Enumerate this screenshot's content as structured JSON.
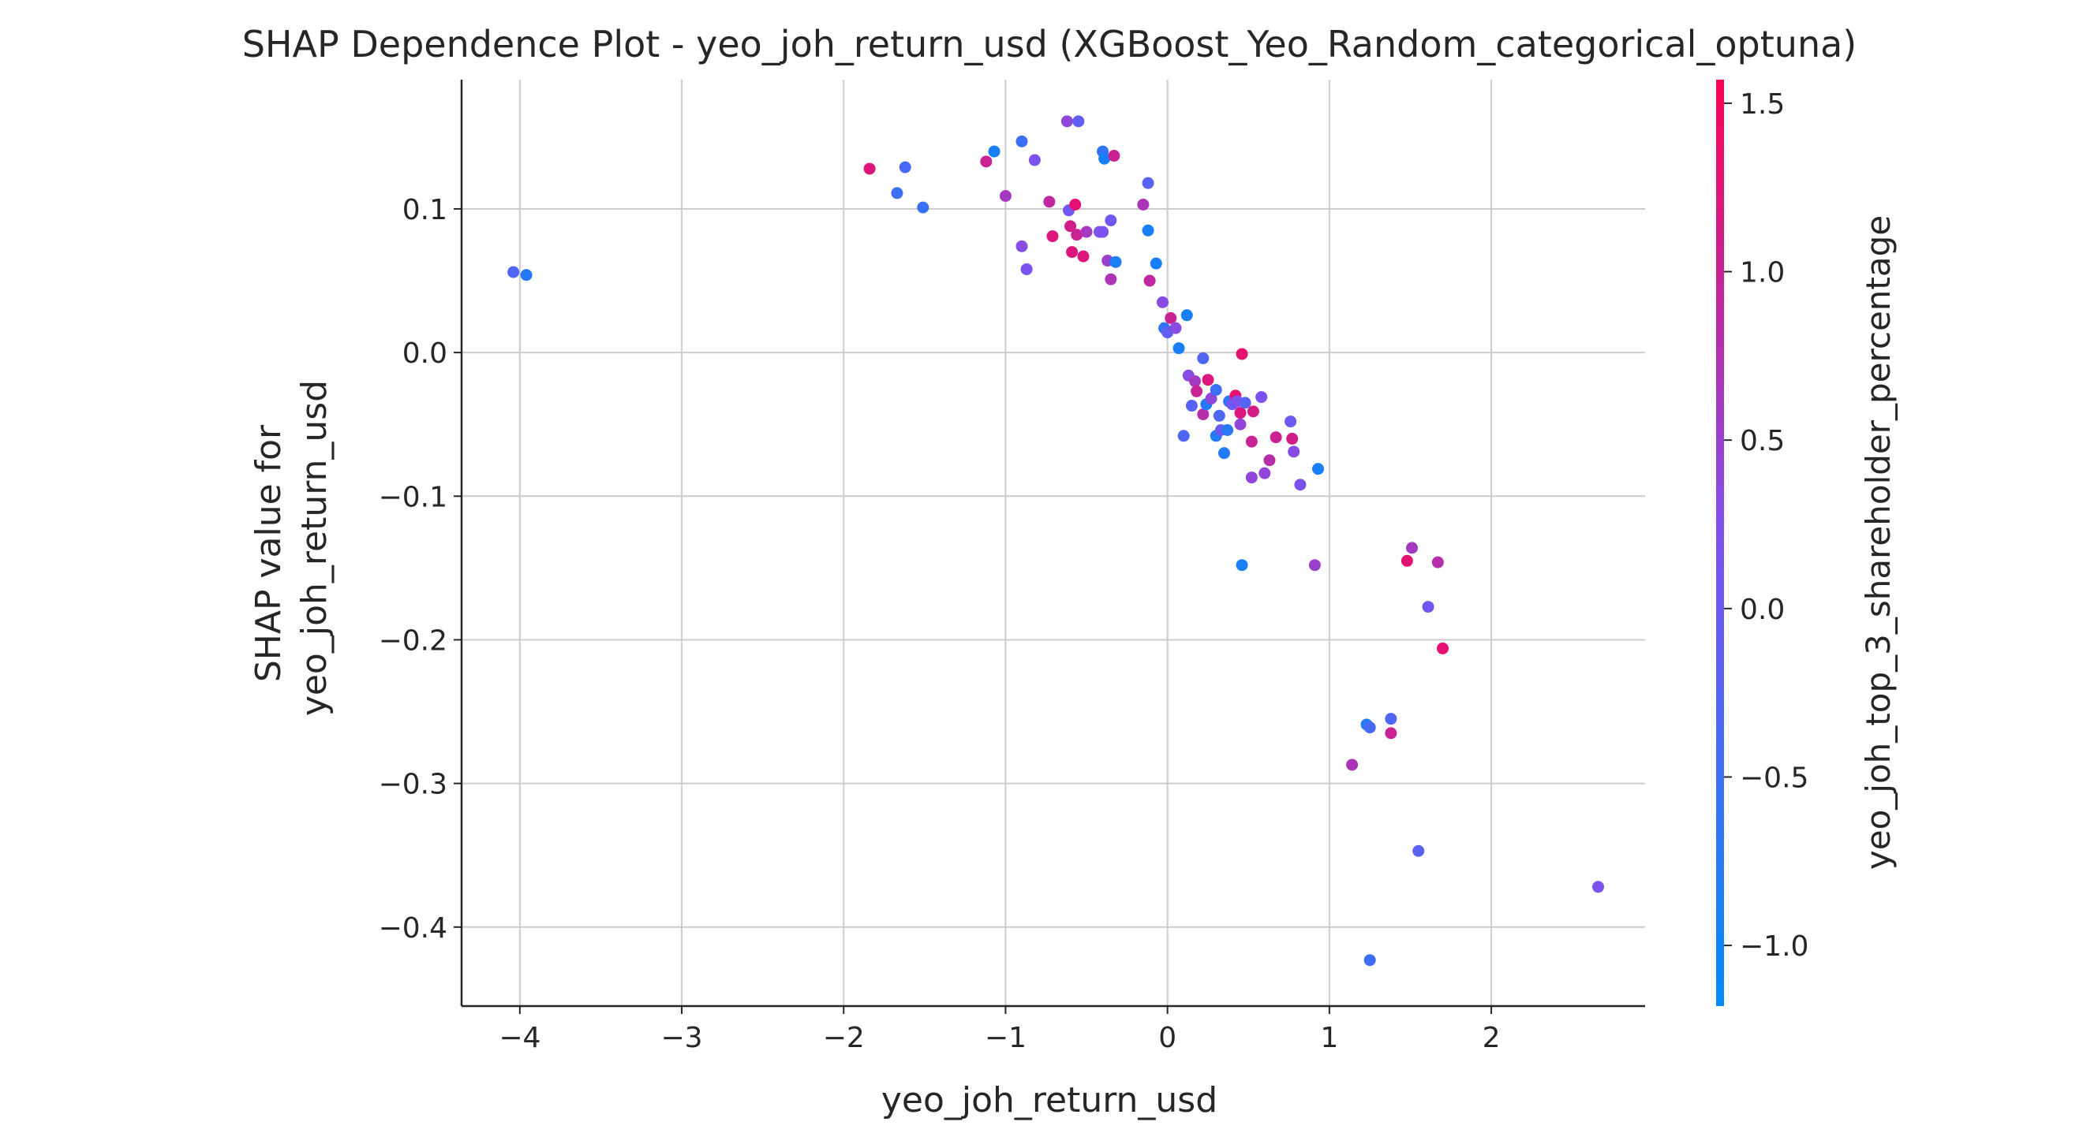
{
  "chart_data": {
    "type": "scatter",
    "title": "SHAP Dependence Plot - yeo_joh_return_usd (XGBoost_Yeo_Random_categorical_optuna)",
    "xlabel": "yeo_joh_return_usd",
    "ylabel_lines": [
      "SHAP value for",
      "yeo_joh_return_usd"
    ],
    "xlim": [
      -4.36,
      2.95
    ],
    "ylim": [
      -0.455,
      0.19
    ],
    "xticks": [
      -4,
      -3,
      -2,
      -1,
      0,
      1,
      2
    ],
    "xtick_labels": [
      "−4",
      "−3",
      "−2",
      "−1",
      "0",
      "1",
      "2"
    ],
    "yticks": [
      -0.4,
      -0.3,
      -0.2,
      -0.1,
      0.0,
      0.1
    ],
    "ytick_labels": [
      "−0.4",
      "−0.3",
      "−0.2",
      "−0.1",
      "0.0",
      "0.1"
    ],
    "grid": true,
    "colorbar": {
      "label": "yeo_joh_top_3_shareholder_percentage",
      "range": [
        -1.18,
        1.57
      ],
      "ticks": [
        -1.0,
        -0.5,
        0.0,
        0.5,
        1.0,
        1.5
      ],
      "tick_labels": [
        "−1.0",
        "−0.5",
        "0.0",
        "0.5",
        "1.0",
        "1.5"
      ],
      "colors": [
        "#008afb",
        "#7c52f0",
        "#ff0052"
      ]
    },
    "points": [
      {
        "x": -4.04,
        "y": 0.056,
        "c": -0.3
      },
      {
        "x": -3.96,
        "y": 0.054,
        "c": -0.75
      },
      {
        "x": -1.84,
        "y": 0.128,
        "c": 1.2
      },
      {
        "x": -1.67,
        "y": 0.111,
        "c": -0.5
      },
      {
        "x": -1.62,
        "y": 0.129,
        "c": -0.4
      },
      {
        "x": -1.51,
        "y": 0.101,
        "c": -0.55
      },
      {
        "x": -1.12,
        "y": 0.133,
        "c": 1.0
      },
      {
        "x": -1.07,
        "y": 0.14,
        "c": -0.9
      },
      {
        "x": -1.0,
        "y": 0.109,
        "c": 0.6
      },
      {
        "x": -0.9,
        "y": 0.147,
        "c": -0.5
      },
      {
        "x": -0.9,
        "y": 0.074,
        "c": 0.3
      },
      {
        "x": -0.87,
        "y": 0.058,
        "c": 0.2
      },
      {
        "x": -0.82,
        "y": 0.134,
        "c": 0.2
      },
      {
        "x": -0.73,
        "y": 0.105,
        "c": 0.9
      },
      {
        "x": -0.71,
        "y": 0.081,
        "c": 1.2
      },
      {
        "x": -0.62,
        "y": 0.161,
        "c": 0.4
      },
      {
        "x": -0.61,
        "y": 0.099,
        "c": 0.1
      },
      {
        "x": -0.6,
        "y": 0.088,
        "c": 1.1
      },
      {
        "x": -0.59,
        "y": 0.07,
        "c": 1.2
      },
      {
        "x": -0.57,
        "y": 0.103,
        "c": 1.3
      },
      {
        "x": -0.56,
        "y": 0.082,
        "c": 1.0
      },
      {
        "x": -0.55,
        "y": 0.161,
        "c": -0.1
      },
      {
        "x": -0.52,
        "y": 0.067,
        "c": 1.2
      },
      {
        "x": -0.5,
        "y": 0.084,
        "c": 0.6
      },
      {
        "x": -0.42,
        "y": 0.084,
        "c": 0.2
      },
      {
        "x": -0.4,
        "y": 0.084,
        "c": 0.2
      },
      {
        "x": -0.4,
        "y": 0.14,
        "c": -0.6
      },
      {
        "x": -0.39,
        "y": 0.135,
        "c": -0.9
      },
      {
        "x": -0.37,
        "y": 0.064,
        "c": 0.5
      },
      {
        "x": -0.35,
        "y": 0.092,
        "c": 0.1
      },
      {
        "x": -0.35,
        "y": 0.051,
        "c": 0.7
      },
      {
        "x": -0.33,
        "y": 0.137,
        "c": 1.0
      },
      {
        "x": -0.32,
        "y": 0.063,
        "c": -0.9
      },
      {
        "x": -0.15,
        "y": 0.103,
        "c": 0.7
      },
      {
        "x": -0.12,
        "y": 0.118,
        "c": -0.2
      },
      {
        "x": -0.12,
        "y": 0.085,
        "c": -0.9
      },
      {
        "x": -0.11,
        "y": 0.05,
        "c": 0.9
      },
      {
        "x": -0.07,
        "y": 0.062,
        "c": -0.9
      },
      {
        "x": -0.03,
        "y": 0.035,
        "c": 0.3
      },
      {
        "x": -0.02,
        "y": 0.017,
        "c": -0.6
      },
      {
        "x": 0.0,
        "y": 0.014,
        "c": -0.1
      },
      {
        "x": 0.02,
        "y": 0.024,
        "c": 1.0
      },
      {
        "x": 0.05,
        "y": 0.017,
        "c": 0.3
      },
      {
        "x": 0.07,
        "y": 0.003,
        "c": -0.9
      },
      {
        "x": 0.1,
        "y": -0.058,
        "c": -0.3
      },
      {
        "x": 0.12,
        "y": 0.026,
        "c": -0.9
      },
      {
        "x": 0.13,
        "y": -0.016,
        "c": 0.3
      },
      {
        "x": 0.15,
        "y": -0.037,
        "c": -0.2
      },
      {
        "x": 0.17,
        "y": -0.02,
        "c": 0.6
      },
      {
        "x": 0.18,
        "y": -0.027,
        "c": 1.0
      },
      {
        "x": 0.22,
        "y": -0.004,
        "c": -0.3
      },
      {
        "x": 0.22,
        "y": -0.043,
        "c": 0.8
      },
      {
        "x": 0.24,
        "y": -0.036,
        "c": -0.8
      },
      {
        "x": 0.25,
        "y": -0.019,
        "c": 1.2
      },
      {
        "x": 0.27,
        "y": -0.032,
        "c": 0.4
      },
      {
        "x": 0.3,
        "y": -0.026,
        "c": -0.5
      },
      {
        "x": 0.3,
        "y": -0.058,
        "c": -0.8
      },
      {
        "x": 0.32,
        "y": -0.044,
        "c": -0.3
      },
      {
        "x": 0.33,
        "y": -0.054,
        "c": 0.0
      },
      {
        "x": 0.35,
        "y": -0.07,
        "c": -0.8
      },
      {
        "x": 0.37,
        "y": -0.054,
        "c": -0.7
      },
      {
        "x": 0.38,
        "y": -0.034,
        "c": -0.6
      },
      {
        "x": 0.4,
        "y": -0.036,
        "c": 0.0
      },
      {
        "x": 0.42,
        "y": -0.03,
        "c": 1.3
      },
      {
        "x": 0.43,
        "y": -0.034,
        "c": 0.2
      },
      {
        "x": 0.45,
        "y": -0.042,
        "c": 1.2
      },
      {
        "x": 0.45,
        "y": -0.05,
        "c": 0.4
      },
      {
        "x": 0.46,
        "y": -0.001,
        "c": 1.3
      },
      {
        "x": 0.46,
        "y": -0.148,
        "c": -0.9
      },
      {
        "x": 0.48,
        "y": -0.035,
        "c": -0.2
      },
      {
        "x": 0.52,
        "y": -0.062,
        "c": 1.0
      },
      {
        "x": 0.52,
        "y": -0.087,
        "c": 0.4
      },
      {
        "x": 0.53,
        "y": -0.041,
        "c": 1.1
      },
      {
        "x": 0.58,
        "y": -0.031,
        "c": 0.2
      },
      {
        "x": 0.6,
        "y": -0.084,
        "c": 0.4
      },
      {
        "x": 0.63,
        "y": -0.075,
        "c": 0.8
      },
      {
        "x": 0.67,
        "y": -0.059,
        "c": 1.0
      },
      {
        "x": 0.76,
        "y": -0.048,
        "c": 0.0
      },
      {
        "x": 0.77,
        "y": -0.06,
        "c": 1.1
      },
      {
        "x": 0.78,
        "y": -0.069,
        "c": 0.3
      },
      {
        "x": 0.82,
        "y": -0.092,
        "c": 0.2
      },
      {
        "x": 0.91,
        "y": -0.148,
        "c": 0.5
      },
      {
        "x": 0.93,
        "y": -0.081,
        "c": -0.9
      },
      {
        "x": 1.14,
        "y": -0.287,
        "c": 0.7
      },
      {
        "x": 1.23,
        "y": -0.259,
        "c": -0.8
      },
      {
        "x": 1.25,
        "y": -0.261,
        "c": -0.4
      },
      {
        "x": 1.25,
        "y": -0.423,
        "c": -0.5
      },
      {
        "x": 1.38,
        "y": -0.255,
        "c": -0.3
      },
      {
        "x": 1.38,
        "y": -0.265,
        "c": 1.0
      },
      {
        "x": 1.48,
        "y": -0.145,
        "c": 1.3
      },
      {
        "x": 1.51,
        "y": -0.136,
        "c": 0.6
      },
      {
        "x": 1.55,
        "y": -0.347,
        "c": -0.2
      },
      {
        "x": 1.61,
        "y": -0.177,
        "c": 0.1
      },
      {
        "x": 1.67,
        "y": -0.146,
        "c": 0.8
      },
      {
        "x": 1.7,
        "y": -0.206,
        "c": 1.3
      },
      {
        "x": 2.66,
        "y": -0.372,
        "c": 0.2
      }
    ]
  }
}
